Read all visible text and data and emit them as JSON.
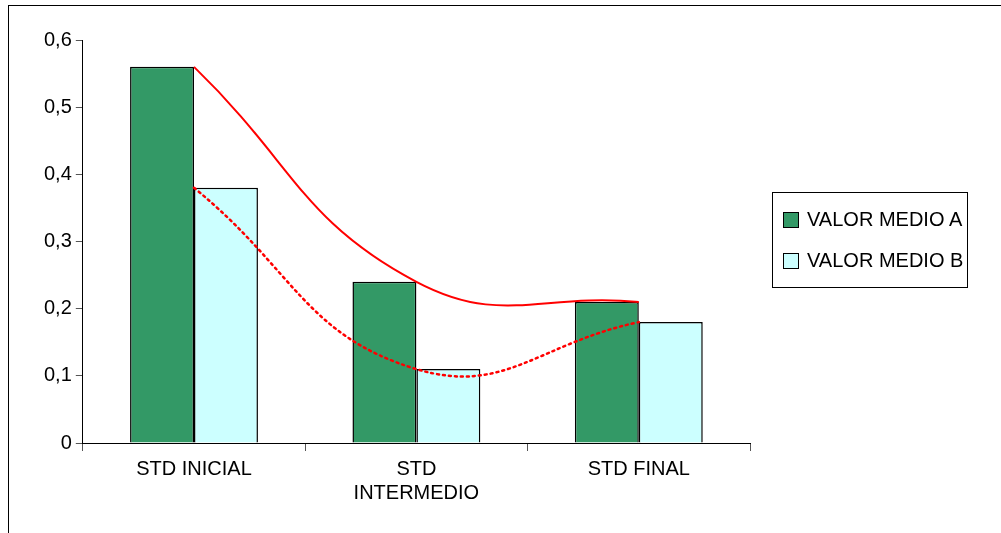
{
  "chart_data": {
    "type": "bar",
    "categories": [
      "STD INICIAL",
      "STD INTERMEDIO",
      "STD FINAL"
    ],
    "series": [
      {
        "name": "VALOR MEDIO A",
        "color": "#339966",
        "values": [
          0.56,
          0.24,
          0.21
        ]
      },
      {
        "name": "VALOR MEDIO B",
        "color": "#ccffff",
        "values": [
          0.38,
          0.11,
          0.18
        ]
      },
      {
        "type": "line",
        "color": "#ff0000",
        "line_style": "solid",
        "values": [
          0.56,
          0.24,
          0.21
        ]
      },
      {
        "type": "line",
        "color": "#ff0000",
        "line_style": "dotted",
        "values": [
          0.38,
          0.11,
          0.18
        ]
      }
    ],
    "ylim": [
      0,
      0.6
    ],
    "yticks": [
      0,
      {
        "value": 0.1,
        "label": "0,1"
      },
      {
        "value": 0.2,
        "label": "0,2"
      },
      {
        "value": 0.3,
        "label": "0,3"
      },
      {
        "value": 0.4,
        "label": "0,4"
      },
      {
        "value": 0.5,
        "label": "0,5"
      },
      {
        "value": 0.6,
        "label": "0,6"
      }
    ],
    "grid": false,
    "legend": "right",
    "marker": "none"
  }
}
